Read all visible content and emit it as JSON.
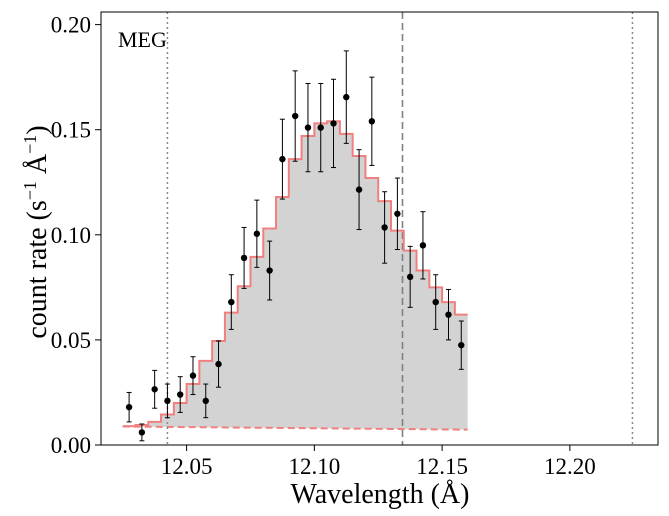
{
  "chart_data": {
    "type": "scatter",
    "annotation": "MEG",
    "xlabel": "Wavelength (Å)",
    "ylabel_main": "count rate (s",
    "ylabel_sup1": "−1",
    "ylabel_mid": " Å",
    "ylabel_sup2": "−1",
    "ylabel_close": ")",
    "xlim": [
      12.0165,
      12.2345
    ],
    "ylim": [
      0.0,
      0.206
    ],
    "xticks": [
      {
        "value": 12.05,
        "label": "12.05"
      },
      {
        "value": 12.1,
        "label": "12.10"
      },
      {
        "value": 12.15,
        "label": "12.15"
      },
      {
        "value": 12.2,
        "label": "12.20"
      }
    ],
    "yticks": [
      {
        "value": 0.0,
        "label": "0.00"
      },
      {
        "value": 0.05,
        "label": "0.05"
      },
      {
        "value": 0.1,
        "label": "0.10"
      },
      {
        "value": 0.15,
        "label": "0.15"
      },
      {
        "value": 0.2,
        "label": "0.20"
      }
    ],
    "vlines": [
      {
        "x": 12.0425,
        "style": "dotted",
        "color": "#888888"
      },
      {
        "x": 12.1345,
        "style": "dashed",
        "color": "#808080"
      },
      {
        "x": 12.2245,
        "style": "dotted",
        "color": "#888888"
      }
    ],
    "colors": {
      "model": "#f08080",
      "fill": "#d3d3d3",
      "points": "#000000"
    },
    "observed": [
      {
        "x": 12.0275,
        "y": 0.018,
        "err": 0.007
      },
      {
        "x": 12.0325,
        "y": 0.006,
        "err": 0.004
      },
      {
        "x": 12.0375,
        "y": 0.0265,
        "err": 0.009
      },
      {
        "x": 12.0425,
        "y": 0.021,
        "err": 0.008
      },
      {
        "x": 12.0475,
        "y": 0.024,
        "err": 0.0085
      },
      {
        "x": 12.0525,
        "y": 0.033,
        "err": 0.009
      },
      {
        "x": 12.0575,
        "y": 0.021,
        "err": 0.008
      },
      {
        "x": 12.0625,
        "y": 0.0385,
        "err": 0.011
      },
      {
        "x": 12.0675,
        "y": 0.068,
        "err": 0.013
      },
      {
        "x": 12.0725,
        "y": 0.089,
        "err": 0.0145
      },
      {
        "x": 12.0775,
        "y": 0.1005,
        "err": 0.016
      },
      {
        "x": 12.0825,
        "y": 0.083,
        "err": 0.014
      },
      {
        "x": 12.0875,
        "y": 0.136,
        "err": 0.019
      },
      {
        "x": 12.0925,
        "y": 0.1565,
        "err": 0.0215
      },
      {
        "x": 12.0975,
        "y": 0.151,
        "err": 0.021
      },
      {
        "x": 12.1025,
        "y": 0.151,
        "err": 0.021
      },
      {
        "x": 12.1075,
        "y": 0.153,
        "err": 0.021
      },
      {
        "x": 12.1125,
        "y": 0.1655,
        "err": 0.022
      },
      {
        "x": 12.1175,
        "y": 0.1215,
        "err": 0.019
      },
      {
        "x": 12.1225,
        "y": 0.154,
        "err": 0.021
      },
      {
        "x": 12.1275,
        "y": 0.1035,
        "err": 0.017
      },
      {
        "x": 12.1325,
        "y": 0.11,
        "err": 0.017
      },
      {
        "x": 12.1375,
        "y": 0.08,
        "err": 0.0145
      },
      {
        "x": 12.1425,
        "y": 0.095,
        "err": 0.016
      },
      {
        "x": 12.1475,
        "y": 0.068,
        "err": 0.013
      },
      {
        "x": 12.1525,
        "y": 0.062,
        "err": 0.012
      },
      {
        "x": 12.1575,
        "y": 0.0475,
        "err": 0.0115
      }
    ],
    "model_bins": {
      "edges": [
        12.025,
        12.03,
        12.035,
        12.04,
        12.045,
        12.05,
        12.055,
        12.06,
        12.065,
        12.07,
        12.075,
        12.08,
        12.085,
        12.09,
        12.095,
        12.1,
        12.105,
        12.11,
        12.115,
        12.12,
        12.125,
        12.13,
        12.135,
        12.14,
        12.145,
        12.15,
        12.155,
        12.16
      ],
      "values": [
        0.009,
        0.0095,
        0.011,
        0.0145,
        0.02,
        0.029,
        0.04,
        0.0495,
        0.063,
        0.0755,
        0.0895,
        0.103,
        0.118,
        0.136,
        0.147,
        0.153,
        0.154,
        0.148,
        0.1375,
        0.127,
        0.116,
        0.102,
        0.0925,
        0.083,
        0.075,
        0.068,
        0.062
      ]
    },
    "continuum": {
      "x": [
        12.025,
        12.16
      ],
      "y": [
        0.0088,
        0.0073
      ]
    }
  }
}
